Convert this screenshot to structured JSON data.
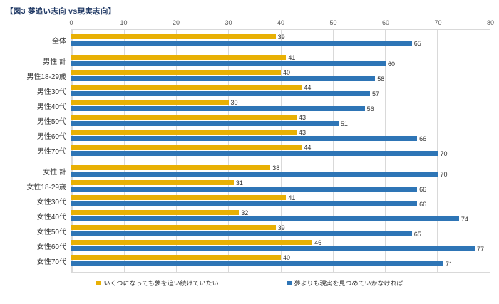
{
  "chart_data": {
    "type": "bar",
    "orientation": "horizontal",
    "title": "【図3 夢追い志向 vs現実志向】",
    "xlim": [
      0,
      80
    ],
    "x_ticks": [
      0,
      10,
      20,
      30,
      40,
      50,
      60,
      70,
      80
    ],
    "grid": true,
    "legend_position": "bottom",
    "categories": [
      "全体",
      "男性 計",
      "男性18-29歳",
      "男性30代",
      "男性40代",
      "男性50代",
      "男性60代",
      "男性70代",
      "女性 計",
      "女性18-29歳",
      "女性30代",
      "女性40代",
      "女性50代",
      "女性60代",
      "女性70代"
    ],
    "group_breaks_after": [
      0,
      7
    ],
    "series": [
      {
        "name": "いくつになっても夢を追い続けていたい",
        "color": "#E8B004",
        "values": [
          39,
          41,
          40,
          44,
          30,
          43,
          43,
          44,
          38,
          31,
          41,
          32,
          39,
          46,
          40
        ]
      },
      {
        "name": "夢よりも現実を見つめていかなければ",
        "color": "#2E75B6",
        "values": [
          65,
          60,
          58,
          57,
          56,
          51,
          66,
          70,
          70,
          66,
          66,
          74,
          65,
          77,
          71
        ]
      }
    ]
  }
}
